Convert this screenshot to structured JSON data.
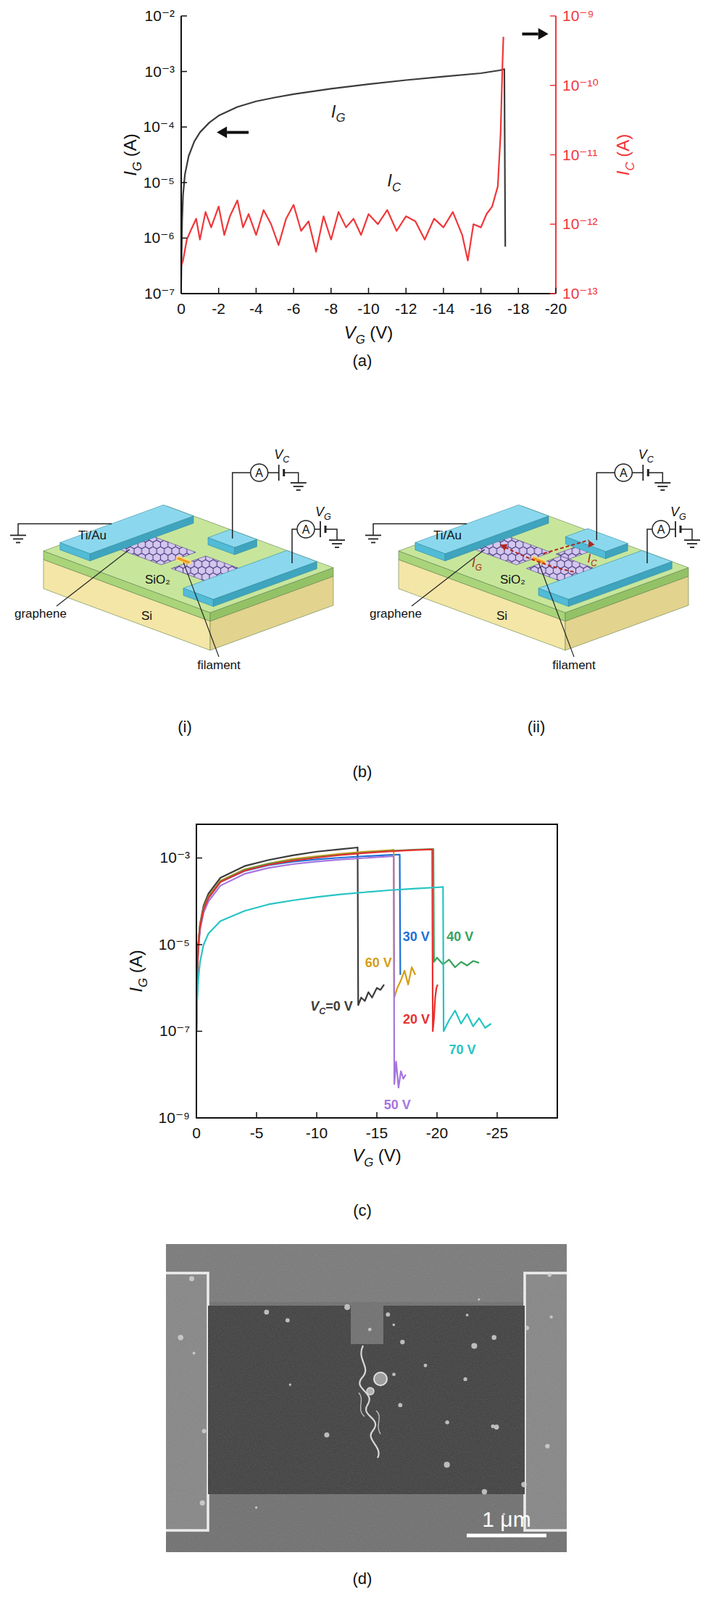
{
  "panels": {
    "a": "(a)",
    "b": "(b)",
    "c": "(c)",
    "d": "(d)"
  },
  "chart_data": [
    {
      "type": "line",
      "x_label": "VG (V)",
      "y_label": "IG (A)",
      "y2_label": "IC (A)",
      "log": "y",
      "xlim": [
        0,
        -20
      ],
      "xticks": [
        0,
        -2,
        -4,
        -6,
        -8,
        -10,
        -12,
        -14,
        -16,
        -18,
        -20
      ],
      "ylim": [
        1e-07,
        0.01
      ],
      "yticks": [
        {
          "value": 1e-07,
          "label": "10⁻⁷"
        },
        {
          "value": 1e-06,
          "label": "10⁻⁶"
        },
        {
          "value": 1e-05,
          "label": "10⁻⁵"
        },
        {
          "value": 0.0001,
          "label": "10⁻⁴"
        },
        {
          "value": 0.001,
          "label": "10⁻³"
        },
        {
          "value": 0.01,
          "label": "10⁻²"
        }
      ],
      "y2lim": [
        1e-13,
        1e-09
      ],
      "y2ticks": [
        {
          "value": 1e-13,
          "label": "10⁻¹³"
        },
        {
          "value": 1e-12,
          "label": "10⁻¹²"
        },
        {
          "value": 1e-11,
          "label": "10⁻¹¹"
        },
        {
          "value": 1e-10,
          "label": "10⁻¹⁰"
        },
        {
          "value": 1e-09,
          "label": "10⁻⁹"
        }
      ],
      "series": [
        {
          "name": "IG",
          "color": "#3c3c3c",
          "x": [
            0,
            -0.05,
            -0.1,
            -0.2,
            -0.4,
            -0.7,
            -1,
            -1.5,
            -2,
            -3,
            -4,
            -5,
            -6,
            -8,
            -10,
            -12,
            -14,
            -16,
            -17,
            -17.25,
            -17.3
          ],
          "values": [
            1.5e-07,
            2e-06,
            6e-06,
            1.4e-05,
            3e-05,
            5.5e-05,
            8e-05,
            0.00012,
            0.00016,
            0.00023,
            0.00029,
            0.00034,
            0.00039,
            0.00049,
            0.00059,
            0.0007,
            0.00081,
            0.00093,
            0.00105,
            0.0011,
            7e-07
          ]
        },
        {
          "name": "IC",
          "color": "#f0373a",
          "axis": "y2",
          "x": [
            0,
            -0.1,
            -0.3,
            -0.5,
            -0.8,
            -1,
            -1.3,
            -1.6,
            -2,
            -2.3,
            -2.6,
            -3,
            -3.3,
            -3.6,
            -4,
            -4.4,
            -4.8,
            -5.2,
            -5.6,
            -6,
            -6.4,
            -6.8,
            -7.2,
            -7.6,
            -8,
            -8.4,
            -8.8,
            -9.2,
            -9.6,
            -10,
            -10.5,
            -11,
            -11.5,
            -12,
            -12.5,
            -13,
            -13.5,
            -14,
            -14.5,
            -15,
            -15.3,
            -15.6,
            -16,
            -16.3,
            -16.6,
            -16.9,
            -17.05,
            -17.15,
            -17.2
          ],
          "values": [
            2.5e-13,
            3e-13,
            6e-13,
            8e-13,
            1.2e-12,
            6e-13,
            1.5e-12,
            9e-13,
            1.8e-12,
            7e-13,
            1.3e-12,
            2.2e-12,
            9e-13,
            1.4e-12,
            7e-13,
            1.6e-12,
            1e-12,
            5e-13,
            1.2e-12,
            1.9e-12,
            8e-13,
            1.1e-12,
            4e-13,
            1.3e-12,
            6e-13,
            1.5e-12,
            9e-13,
            1.2e-12,
            7e-13,
            1.4e-12,
            1e-12,
            1.6e-12,
            8e-13,
            1.3e-12,
            1.1e-12,
            6e-13,
            1.2e-12,
            9e-13,
            1.5e-12,
            7e-13,
            3e-13,
            1e-12,
            9e-13,
            1.4e-12,
            1.8e-12,
            3.5e-12,
            2e-11,
            2e-10,
            5e-10
          ]
        }
      ]
    },
    {
      "type": "line",
      "x_label": "VG (V)",
      "y_label": "IG (A)",
      "log": "y",
      "xlim": [
        0,
        -30
      ],
      "xticks": [
        0,
        -5,
        -10,
        -15,
        -20,
        -25
      ],
      "ylim": [
        1e-09,
        0.006
      ],
      "yticks": [
        {
          "value": 1e-09,
          "label": "10⁻⁹"
        },
        {
          "value": 1e-07,
          "label": "10⁻⁷"
        },
        {
          "value": 1e-05,
          "label": "10⁻⁵"
        },
        {
          "value": 0.001,
          "label": "10⁻³"
        }
      ],
      "series": [
        {
          "name": "VC=0 V",
          "color": "#3c3c3c",
          "x": [
            0,
            -0.05,
            -0.15,
            -0.3,
            -0.6,
            -1,
            -2,
            -4,
            -6,
            -8,
            -10,
            -12,
            -13.4,
            -13.45,
            -13.7,
            -14,
            -14.3,
            -14.6,
            -15,
            -15.3,
            -15.6
          ],
          "values": [
            1e-07,
            2e-06,
            1e-05,
            3e-05,
            8e-05,
            0.00015,
            0.00035,
            0.00065,
            0.0009,
            0.00115,
            0.0014,
            0.0016,
            0.00175,
            4e-07,
            6e-07,
            5e-07,
            8e-07,
            6e-07,
            1e-06,
            9e-07,
            1.2e-06
          ]
        },
        {
          "name": "30 V",
          "color": "#1f6fd6",
          "x": [
            0,
            -0.05,
            -0.15,
            -0.3,
            -0.6,
            -1,
            -2,
            -4,
            -6,
            -8,
            -10,
            -12,
            -14,
            -16,
            -16.9,
            -16.95
          ],
          "values": [
            1e-07,
            1.5e-06,
            8e-06,
            2.5e-05,
            6.5e-05,
            0.00012,
            0.00028,
            0.0005,
            0.00068,
            0.00082,
            0.00093,
            0.00102,
            0.0011,
            0.00117,
            0.0012,
            2e-06
          ]
        },
        {
          "name": "60 V",
          "color": "#d49e16",
          "x": [
            0,
            -0.05,
            -0.15,
            -0.3,
            -0.6,
            -1,
            -2,
            -4,
            -6,
            -8,
            -10,
            -12,
            -14,
            -16,
            -16.4,
            -16.45,
            -16.7,
            -17,
            -17.3,
            -17.6,
            -17.9,
            -18.2
          ],
          "values": [
            1e-07,
            2e-06,
            9e-06,
            2.8e-05,
            7e-05,
            0.00013,
            0.0003,
            0.00055,
            0.00075,
            0.00095,
            0.0011,
            0.00125,
            0.0014,
            0.0015,
            0.00155,
            6e-07,
            1e-06,
            1.5e-06,
            2.5e-06,
            1.2e-06,
            3e-06,
            2e-06
          ]
        },
        {
          "name": "50 V",
          "color": "#a575e0",
          "x": [
            0,
            -0.05,
            -0.15,
            -0.3,
            -0.6,
            -1,
            -2,
            -4,
            -6,
            -8,
            -10,
            -12,
            -14,
            -16,
            -16.4,
            -16.45,
            -16.6,
            -16.8,
            -17,
            -17.2,
            -17.4
          ],
          "values": [
            1e-07,
            1.2e-06,
            7e-06,
            2.2e-05,
            5.5e-05,
            0.0001,
            0.00023,
            0.00043,
            0.00059,
            0.00072,
            0.00083,
            0.00092,
            0.001,
            0.00108,
            0.0011,
            6e-09,
            2e-08,
            5e-09,
            1.2e-08,
            8e-09,
            1e-08
          ]
        },
        {
          "name": "40 V",
          "color": "#38a35a",
          "x": [
            0,
            -0.05,
            -0.15,
            -0.3,
            -0.6,
            -1,
            -2,
            -4,
            -6,
            -8,
            -10,
            -12,
            -14,
            -16,
            -18,
            -19.7,
            -19.75,
            -20,
            -20.5,
            -21,
            -21.5,
            -22,
            -22.5,
            -23,
            -23.5
          ],
          "values": [
            1e-07,
            1.8e-06,
            9e-06,
            2.7e-05,
            6.8e-05,
            0.000125,
            0.00029,
            0.00053,
            0.00073,
            0.0009,
            0.00105,
            0.0012,
            0.00133,
            0.00145,
            0.00155,
            0.00162,
            4e-06,
            5e-06,
            3.5e-06,
            4.5e-06,
            3e-06,
            4e-06,
            3.3e-06,
            4.2e-06,
            3.8e-06
          ]
        },
        {
          "name": "20 V",
          "color": "#e8302f",
          "x": [
            0,
            -0.05,
            -0.15,
            -0.3,
            -0.6,
            -1,
            -2,
            -4,
            -6,
            -8,
            -10,
            -12,
            -14,
            -16,
            -18,
            -19.6,
            -19.65,
            -19.75,
            -19.85,
            -19.95,
            -20.05
          ],
          "values": [
            1e-07,
            1.6e-06,
            8.5e-06,
            2.6e-05,
            6.5e-05,
            0.00012,
            0.00028,
            0.00051,
            0.0007,
            0.00087,
            0.00102,
            0.00117,
            0.0013,
            0.00142,
            0.00152,
            0.00158,
            1e-07,
            2e-07,
            6e-07,
            1e-06,
            1.2e-06
          ]
        },
        {
          "name": "70 V",
          "color": "#26c4c4",
          "x": [
            0,
            -0.05,
            -0.15,
            -0.3,
            -0.6,
            -1,
            -2,
            -4,
            -6,
            -8,
            -10,
            -12,
            -14,
            -16,
            -18,
            -20,
            -20.5,
            -20.55,
            -21,
            -21.5,
            -22,
            -22.5,
            -23,
            -23.5,
            -24,
            -24.5
          ],
          "values": [
            1e-07,
            4e-07,
            1.5e-06,
            4e-06,
            1e-05,
            1.8e-05,
            3.5e-05,
            6e-05,
            8.5e-05,
            0.000105,
            0.000125,
            0.000145,
            0.000162,
            0.00018,
            0.000195,
            0.00021,
            0.000215,
            1e-07,
            1.8e-07,
            3e-07,
            1.5e-07,
            2.5e-07,
            1.3e-07,
            2e-07,
            1.2e-07,
            1.5e-07
          ]
        }
      ]
    }
  ],
  "diagrams": [
    {
      "label": "(i)",
      "texts": {
        "electrode": "Ti/Au",
        "graphene": "graphene",
        "oxide": "SiO₂",
        "substrate": "Si",
        "filament": "filament",
        "ammeter": "A",
        "vc": "VC",
        "vg": "VG"
      }
    },
    {
      "label": "(ii)",
      "texts": {
        "electrode": "Ti/Au",
        "graphene": "graphene",
        "oxide": "SiO₂",
        "substrate": "Si",
        "filament": "filament",
        "ammeter": "A",
        "vc": "VC",
        "vg": "VG",
        "ic": "IC",
        "ig": "IG"
      }
    }
  ],
  "sem": {
    "scale_bar": "1 μm"
  }
}
